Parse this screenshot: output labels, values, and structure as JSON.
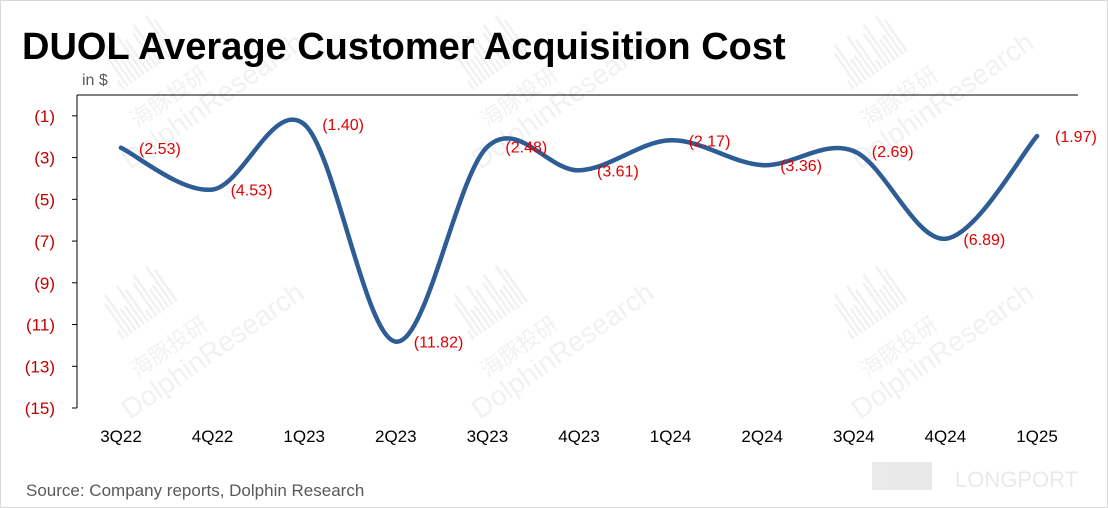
{
  "title": "DUOL Average Customer Acquisition Cost",
  "unit_label": "in $",
  "source": "Source: Company reports, Dolphin Research",
  "watermark": {
    "cn_text": "海豚投研",
    "en_text": "DolphinResearch",
    "brand_text": "LONGPORT"
  },
  "colors": {
    "line": "#2e5d95",
    "tick_y": "#c00000",
    "data_label": "#e00000",
    "tick_x": "#000000"
  },
  "chart_data": {
    "type": "line",
    "title": "DUOL Average Customer Acquisition Cost",
    "xlabel": "",
    "ylabel": "in $",
    "categories": [
      "3Q22",
      "4Q22",
      "1Q23",
      "2Q23",
      "3Q23",
      "4Q23",
      "1Q24",
      "2Q24",
      "3Q24",
      "4Q24",
      "1Q25"
    ],
    "series": [
      {
        "values": [
          -2.53,
          -4.53,
          -1.4,
          -11.82,
          -2.48,
          -3.61,
          -2.17,
          -3.36,
          -2.69,
          -6.89,
          -1.97
        ],
        "data_labels": [
          "(2.53)",
          "(4.53)",
          "(1.40)",
          "(11.82)",
          "(2.48)",
          "(3.61)",
          "(2.17)",
          "(3.36)",
          "(2.69)",
          "(6.89)",
          "(1.97)"
        ]
      }
    ],
    "y_ticks": [
      -1,
      -3,
      -5,
      -7,
      -9,
      -11,
      -13,
      -15
    ],
    "y_tick_labels": [
      "(1)",
      "(3)",
      "(5)",
      "(7)",
      "(9)",
      "(11)",
      "(13)",
      "(15)"
    ],
    "ylim": [
      -15,
      0
    ],
    "smooth": true,
    "grid": false,
    "legend": "none"
  }
}
